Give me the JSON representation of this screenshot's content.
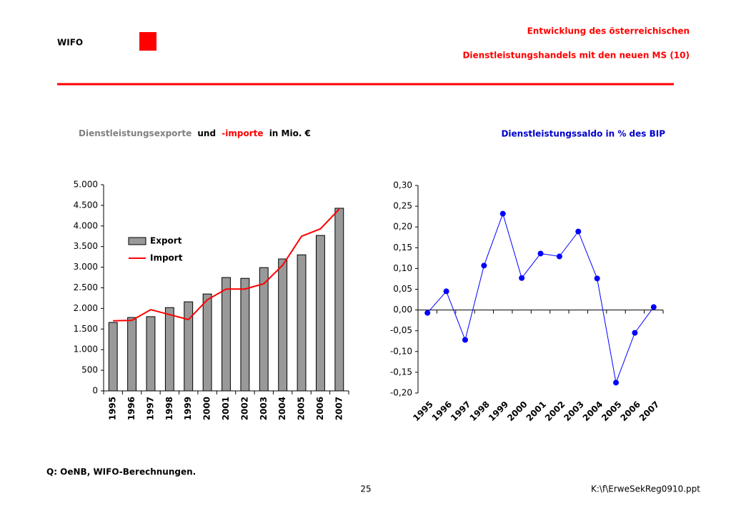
{
  "header": {
    "logo": "WIFO",
    "title_lines": [
      "Entwicklung des österreichischen",
      "Dienstleistungshandels mit den neuen MS (10)"
    ]
  },
  "chart_data": [
    {
      "type": "bar",
      "title_parts": [
        "Dienstleistungsexporte",
        "und",
        "-importe",
        "in Mio. €"
      ],
      "categories": [
        "1995",
        "1996",
        "1997",
        "1998",
        "1999",
        "2000",
        "2001",
        "2002",
        "2003",
        "2004",
        "2005",
        "2006",
        "2007"
      ],
      "series": [
        {
          "name": "Export",
          "type": "bar",
          "color": "#999999",
          "values": [
            1660,
            1780,
            1800,
            2020,
            2160,
            2350,
            2750,
            2730,
            2990,
            3200,
            3300,
            3770,
            4430
          ]
        },
        {
          "name": "Import",
          "type": "line",
          "color": "#ff0000",
          "values": [
            1700,
            1710,
            1970,
            1850,
            1730,
            2210,
            2470,
            2470,
            2600,
            3050,
            3750,
            3930,
            4410
          ]
        }
      ],
      "ylim": [
        0,
        5000
      ],
      "yticks": [
        0,
        500,
        {
          "value": 1000,
          "label": "1.000"
        },
        {
          "value": 1500,
          "label": "1.500"
        },
        {
          "value": 2000,
          "label": "2.000"
        },
        {
          "value": 2500,
          "label": "2.500"
        },
        {
          "value": 3000,
          "label": "3.000"
        },
        {
          "value": 3500,
          "label": "3.500"
        },
        {
          "value": 4000,
          "label": "4.000"
        },
        {
          "value": 4500,
          "label": "4.500"
        },
        {
          "value": 5000,
          "label": "5.000"
        }
      ],
      "legend": "upper-left",
      "grid": false
    },
    {
      "type": "line",
      "title": "Dienstleistungssaldo in % des BIP",
      "categories": [
        "1995",
        "1996",
        "1997",
        "1998",
        "1999",
        "2000",
        "2001",
        "2002",
        "2003",
        "2004",
        "2005",
        "2006",
        "2007"
      ],
      "series": [
        {
          "name": "Dienstleistungssaldo",
          "color": "#0000ff",
          "values": [
            -0.007,
            0.045,
            -0.072,
            0.107,
            0.232,
            0.077,
            0.136,
            0.129,
            0.189,
            0.076,
            -0.175,
            -0.055,
            0.007
          ]
        }
      ],
      "ylim": [
        -0.2,
        0.3
      ],
      "yticks": [
        {
          "value": -0.2,
          "label": "-0,20"
        },
        {
          "value": -0.15,
          "label": "-0,15"
        },
        {
          "value": -0.1,
          "label": "-0,10"
        },
        {
          "value": -0.05,
          "label": "-0,05"
        },
        {
          "value": 0,
          "label": "0,00"
        },
        {
          "value": 0.05,
          "label": "0,05"
        },
        {
          "value": 0.1,
          "label": "0,10"
        },
        {
          "value": 0.15,
          "label": "0,15"
        },
        {
          "value": 0.2,
          "label": "0,20"
        },
        {
          "value": 0.25,
          "label": "0,25"
        },
        {
          "value": 0.3,
          "label": "0,30"
        }
      ],
      "grid": false
    }
  ],
  "footer": {
    "source": "Q: OeNB, WIFO-Berechnungen.",
    "page": "25",
    "file": "K:\\f\\ErweSekReg0910.ppt"
  }
}
